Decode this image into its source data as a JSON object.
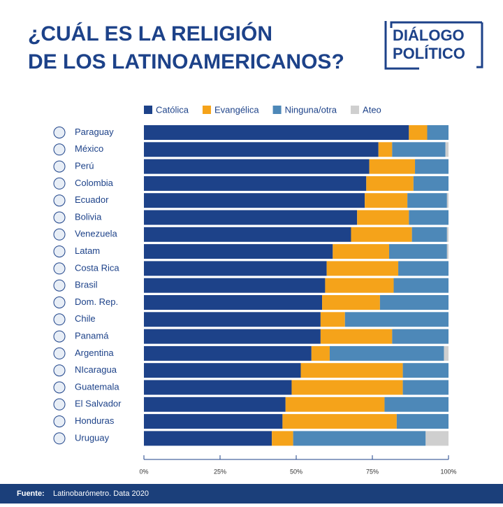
{
  "chart_data": {
    "type": "bar",
    "orientation": "horizontal",
    "stacked": true,
    "title": [
      "¿CUÁL ES LA RELIGIÓN",
      "DE LOS LATINOAMERICANOS?"
    ],
    "logo": [
      "DIÁLOGO",
      "POLÍTICO"
    ],
    "source": {
      "label": "Fuente:",
      "text": "Latinobarómetro. Data 2020"
    },
    "categories": [
      "Paraguay",
      "México",
      "Perú",
      "Colombia",
      "Ecuador",
      "Bolivia",
      "Venezuela",
      "Latam",
      "Costa Rica",
      "Brasil",
      "Dom. Rep.",
      "Chile",
      "Panamá",
      "Argentina",
      "NIcaragua",
      "Guatemala",
      "El Salvador",
      "Honduras",
      "Uruguay"
    ],
    "series": [
      {
        "name": "Católica",
        "color": "#1d4289",
        "values": [
          87,
          77,
          74,
          73,
          72.5,
          70,
          68,
          62,
          60,
          59.5,
          58.5,
          58,
          58,
          55,
          51.5,
          48.5,
          46.5,
          45.5,
          42
        ]
      },
      {
        "name": "Evangélica",
        "color": "#f5a31a",
        "values": [
          6,
          4.5,
          15,
          15.5,
          14,
          17,
          20,
          18.5,
          23.5,
          22.5,
          19,
          8,
          23.5,
          6,
          33.5,
          36.5,
          32.5,
          37.5,
          7
        ]
      },
      {
        "name": "Ninguna/otra",
        "color": "#4d88b8",
        "values": [
          7,
          17.5,
          11,
          11.5,
          13,
          13,
          11.5,
          19,
          16.5,
          18,
          22.5,
          34,
          18.5,
          37.5,
          15,
          15,
          21,
          17,
          43.5
        ]
      },
      {
        "name": "Ateo",
        "color": "#cfcfcf",
        "values": [
          0,
          1,
          0,
          0,
          0.5,
          0,
          0.5,
          0.5,
          0,
          0,
          0,
          0,
          0,
          1.5,
          0,
          0,
          0,
          0,
          7.5
        ]
      }
    ],
    "xlim": [
      0,
      100
    ],
    "xticks": [
      {
        "value": 0,
        "label": "0%"
      },
      {
        "value": 25,
        "label": "25%"
      },
      {
        "value": 50,
        "label": "50%"
      },
      {
        "value": 75,
        "label": "75%"
      },
      {
        "value": 100,
        "label": "100%"
      }
    ]
  }
}
